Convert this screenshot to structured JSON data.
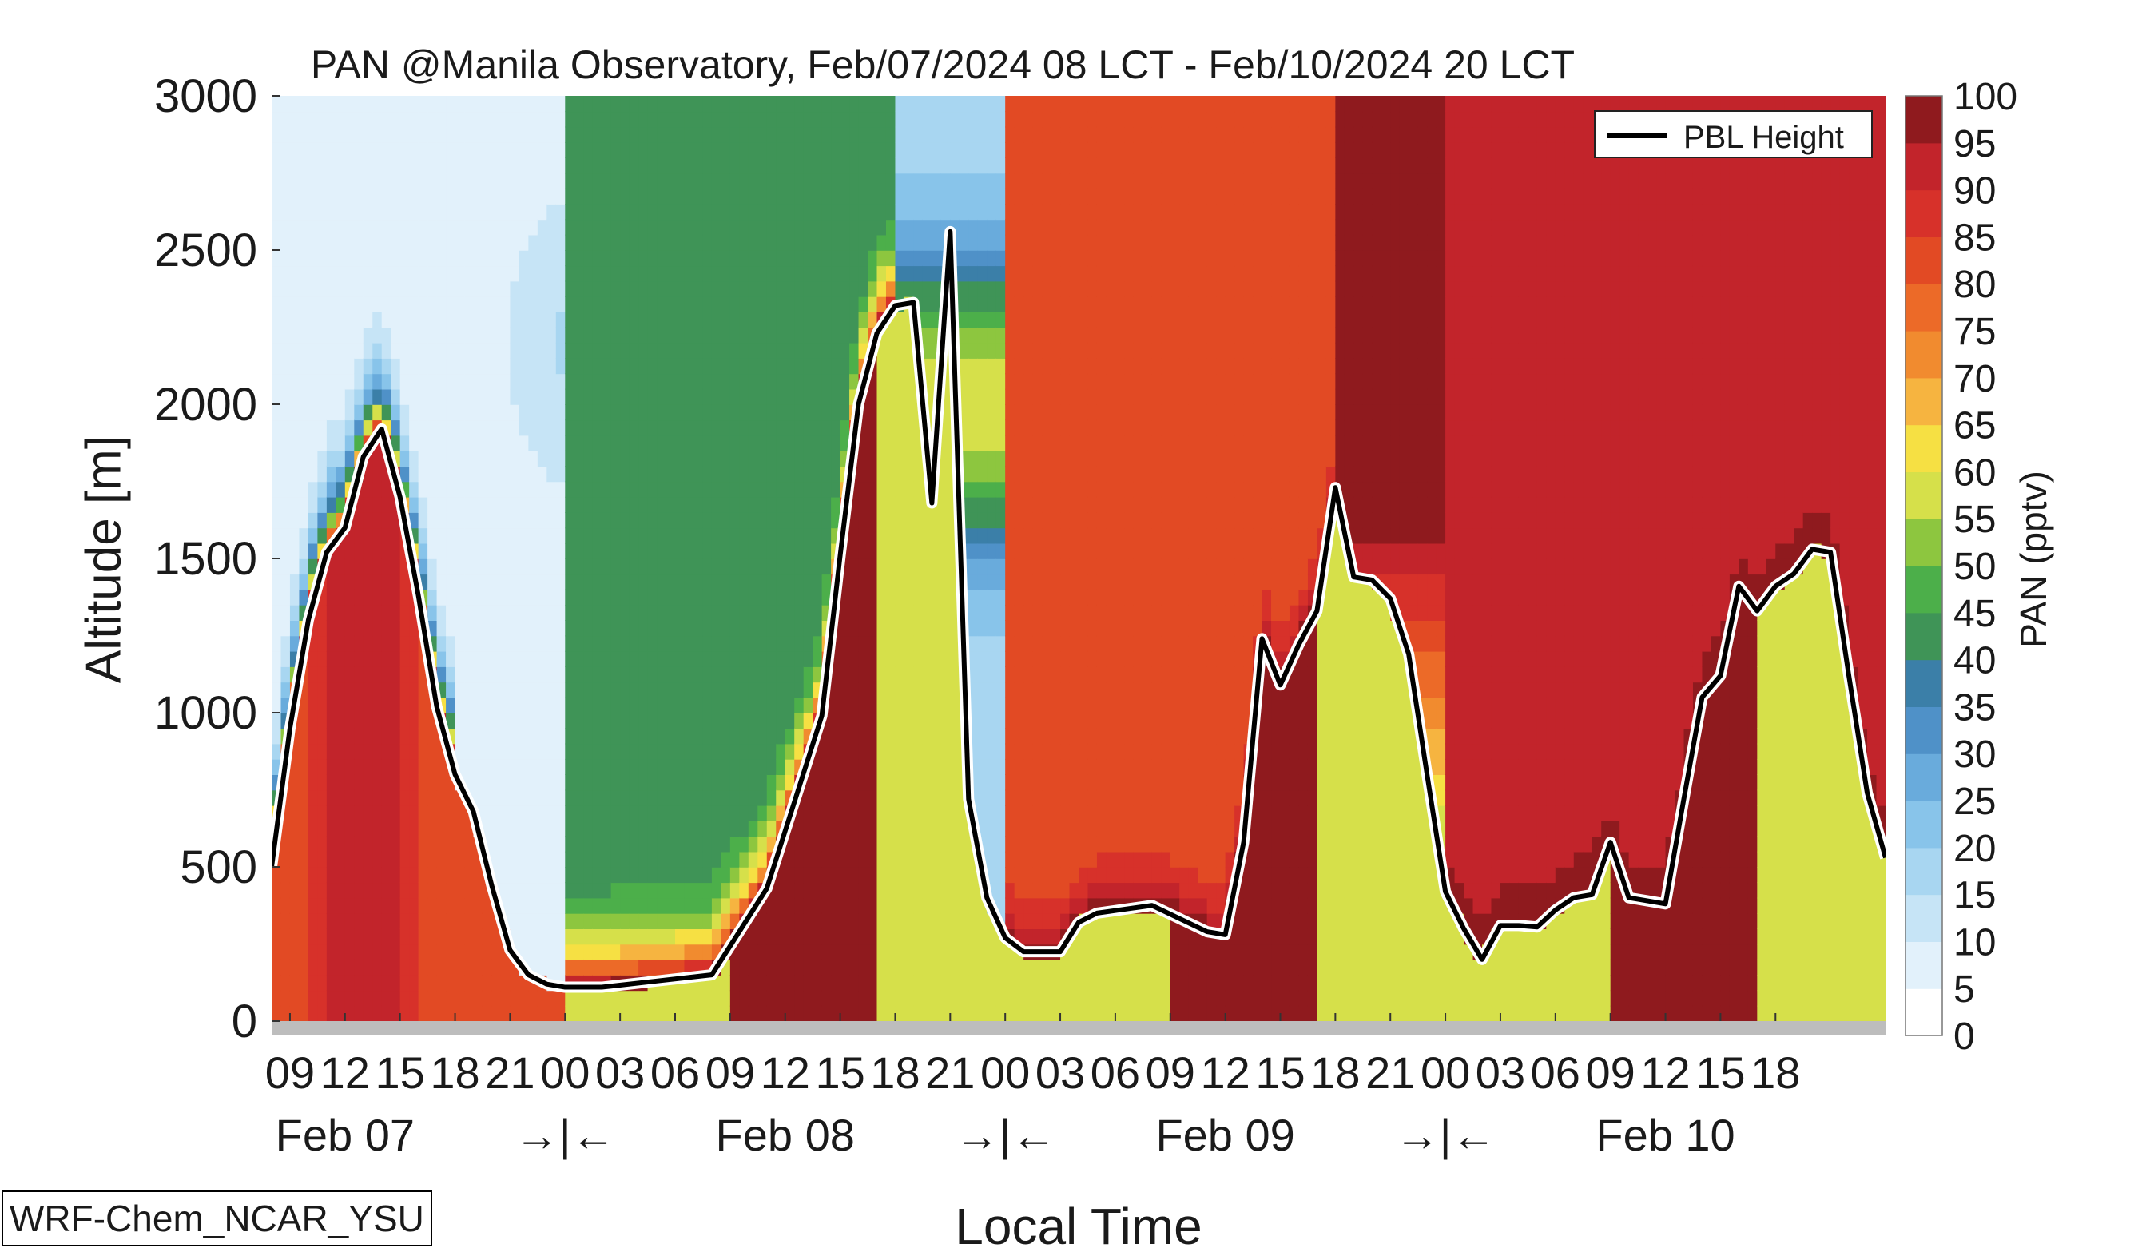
{
  "chart_data": {
    "type": "heatmap",
    "title": "PAN @Manila Observatory, Feb/07/2024 08 LCT - Feb/10/2024 20 LCT",
    "xlabel": "Local Time",
    "ylabel": "Altitude [m]",
    "colorbar_label": "PAN (pptv)",
    "colorbar_ticks": [
      0,
      5,
      10,
      15,
      20,
      25,
      30,
      35,
      40,
      45,
      50,
      55,
      60,
      65,
      70,
      75,
      80,
      85,
      90,
      95,
      100
    ],
    "colorbar_colors": [
      "#ffffff",
      "#e2f1fb",
      "#c6e4f6",
      "#a8d6f1",
      "#88c4ea",
      "#69abdc",
      "#4f91c8",
      "#3b7fa8",
      "#3f9457",
      "#4caf4a",
      "#8dc63f",
      "#d6e04a",
      "#f6e043",
      "#f6b440",
      "#f18b2f",
      "#ec6a28",
      "#e24a24",
      "#d7312a",
      "#c2242b",
      "#8f1a1e"
    ],
    "y_ticks": [
      0,
      500,
      1000,
      1500,
      2000,
      2500,
      3000
    ],
    "ylim": [
      0,
      3000
    ],
    "x_hour_ticks": [
      "09",
      "12",
      "15",
      "18",
      "21",
      "00",
      "03",
      "06",
      "09",
      "12",
      "15",
      "18",
      "21",
      "00",
      "03",
      "06",
      "09",
      "12",
      "15",
      "18",
      "21",
      "00",
      "03",
      "06",
      "09",
      "12",
      "15",
      "18"
    ],
    "x_day_labels": [
      "Feb 07",
      "→|←",
      "Feb 08",
      "→|←",
      "Feb 09",
      "→|←",
      "Feb 10"
    ],
    "legend": {
      "entries": [
        "PBL Height"
      ],
      "position": "top-right"
    },
    "model_label": "WRF-Chem_NCAR_YSU",
    "pbl_height": {
      "name": "PBL Height",
      "hours_since_start": [
        0,
        1,
        2,
        3,
        4,
        5,
        6,
        7,
        8,
        9,
        10,
        11,
        12,
        13,
        14,
        15,
        16,
        18,
        21,
        24,
        27,
        30,
        31,
        32,
        33,
        34,
        35,
        36,
        37,
        38,
        39,
        40,
        41,
        42,
        43,
        44,
        45,
        48,
        51,
        52,
        53,
        54,
        55,
        56,
        57,
        58,
        59,
        60,
        61,
        62,
        63,
        64,
        65,
        66,
        67,
        68,
        69,
        70,
        71,
        72,
        73,
        74,
        75,
        76,
        77,
        78,
        79,
        80,
        81,
        82,
        83,
        84,
        85,
        86,
        87,
        88
      ],
      "values_m": [
        500,
        950,
        1300,
        1520,
        1600,
        1830,
        1920,
        1700,
        1380,
        1020,
        800,
        680,
        440,
        230,
        150,
        120,
        110,
        110,
        130,
        150,
        430,
        990,
        1510,
        2000,
        2230,
        2320,
        2330,
        1680,
        2560,
        720,
        400,
        270,
        225,
        225,
        225,
        320,
        350,
        375,
        290,
        280,
        580,
        1240,
        1090,
        1220,
        1330,
        1730,
        1440,
        1430,
        1370,
        1190,
        800,
        420,
        300,
        200,
        310,
        310,
        305,
        360,
        400,
        410,
        580,
        400,
        390,
        380,
        720,
        1050,
        1120,
        1410,
        1330,
        1410,
        1450,
        1530,
        1520,
        1120,
        740,
        530
      ],
      "note_hours_axis": "hours from Feb 07 08 LCT"
    }
  }
}
